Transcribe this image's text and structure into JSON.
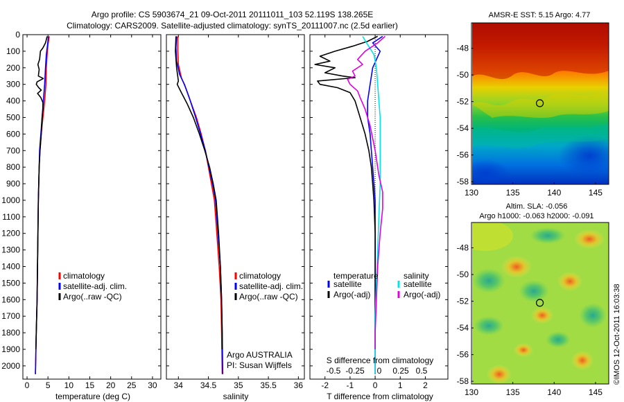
{
  "header": {
    "line1": "Argo profile: CS 5903674_21 09-Oct-2011 20111011_103 52.119S 138.265E",
    "line2": "Climatology: CARS2009. Satellite-adjusted climatology: synTS_20111007.nc (2.5d earlier)"
  },
  "colors": {
    "climatology": "#ff0000",
    "satellite": "#0000ff",
    "argo": "#000000",
    "salinity_satellite": "#00e5e5",
    "salinity_argo": "#e000e0"
  },
  "chart_data": [
    {
      "type": "line",
      "id": "temperature",
      "xlabel": "temperature (deg C)",
      "xlim": [
        -1,
        32
      ],
      "ylim": [
        2080,
        0
      ],
      "xticks": [
        0,
        5,
        10,
        15,
        20,
        25,
        30
      ],
      "yticks": [
        0,
        100,
        200,
        300,
        400,
        500,
        600,
        700,
        800,
        900,
        1000,
        1100,
        1200,
        1300,
        1400,
        1500,
        1600,
        1700,
        1800,
        1900,
        2000
      ],
      "legend": [
        "climatology",
        "satellite-adj. clim.",
        "Argo(..raw -QC)"
      ],
      "series": [
        {
          "name": "climatology",
          "color": "#ff0000",
          "points": [
            [
              5.3,
              10
            ],
            [
              5.0,
              60
            ],
            [
              4.8,
              120
            ],
            [
              4.6,
              200
            ],
            [
              4.5,
              300
            ],
            [
              4.2,
              400
            ],
            [
              3.8,
              500
            ],
            [
              3.4,
              600
            ],
            [
              3.1,
              700
            ],
            [
              2.9,
              800
            ],
            [
              2.8,
              900
            ],
            [
              2.7,
              1000
            ],
            [
              2.6,
              1200
            ],
            [
              2.5,
              1400
            ],
            [
              2.4,
              1600
            ],
            [
              2.2,
              1800
            ],
            [
              2.0,
              2050
            ]
          ]
        },
        {
          "name": "satellite-adj. clim.",
          "color": "#0000ff",
          "points": [
            [
              5.1,
              10
            ],
            [
              4.9,
              60
            ],
            [
              4.6,
              120
            ],
            [
              4.4,
              200
            ],
            [
              4.2,
              300
            ],
            [
              3.9,
              400
            ],
            [
              3.6,
              500
            ],
            [
              3.3,
              600
            ],
            [
              3.0,
              700
            ],
            [
              2.9,
              800
            ],
            [
              2.8,
              900
            ],
            [
              2.7,
              1000
            ],
            [
              2.6,
              1200
            ],
            [
              2.5,
              1400
            ],
            [
              2.4,
              1600
            ],
            [
              2.2,
              1800
            ],
            [
              2.0,
              2050
            ]
          ]
        },
        {
          "name": "Argo(..raw -QC)",
          "color": "#000000",
          "points": [
            [
              4.8,
              10
            ],
            [
              4.4,
              50
            ],
            [
              3.8,
              80
            ],
            [
              3.2,
              100
            ],
            [
              3.0,
              150
            ],
            [
              2.6,
              180
            ],
            [
              2.9,
              210
            ],
            [
              2.7,
              250
            ],
            [
              3.9,
              265
            ],
            [
              2.4,
              285
            ],
            [
              2.2,
              300
            ],
            [
              2.8,
              320
            ],
            [
              3.4,
              335
            ],
            [
              2.5,
              355
            ],
            [
              3.3,
              380
            ],
            [
              3.8,
              410
            ],
            [
              3.8,
              450
            ],
            [
              3.6,
              500
            ],
            [
              3.4,
              600
            ],
            [
              3.1,
              700
            ],
            [
              2.9,
              800
            ],
            [
              2.8,
              900
            ],
            [
              2.7,
              1000
            ],
            [
              2.6,
              1200
            ],
            [
              2.5,
              1400
            ],
            [
              2.4,
              1600
            ],
            [
              2.2,
              1800
            ],
            [
              2.1,
              1900
            ]
          ]
        }
      ]
    },
    {
      "type": "line",
      "id": "salinity",
      "xlabel": "salinity",
      "xlim": [
        33.8,
        36.1
      ],
      "ylim": [
        2080,
        0
      ],
      "xticks": [
        34,
        34.5,
        35,
        35.5,
        36
      ],
      "legend": [
        "climatology",
        "satellite-adj. clim.",
        "Argo(..raw -QC)"
      ],
      "annotations": [
        "Argo AUSTRALIA",
        "PI: Susan Wijffels"
      ],
      "series": [
        {
          "name": "climatology",
          "color": "#ff0000",
          "points": [
            [
              33.99,
              10
            ],
            [
              33.99,
              100
            ],
            [
              34.0,
              180
            ],
            [
              34.05,
              260
            ],
            [
              34.12,
              320
            ],
            [
              34.2,
              400
            ],
            [
              34.3,
              500
            ],
            [
              34.38,
              600
            ],
            [
              34.45,
              700
            ],
            [
              34.5,
              800
            ],
            [
              34.55,
              900
            ],
            [
              34.6,
              1000
            ],
            [
              34.64,
              1200
            ],
            [
              34.68,
              1400
            ],
            [
              34.71,
              1600
            ],
            [
              34.72,
              1800
            ],
            [
              34.73,
              2050
            ]
          ]
        },
        {
          "name": "satellite-adj. clim.",
          "color": "#0000ff",
          "points": [
            [
              33.97,
              10
            ],
            [
              33.96,
              80
            ],
            [
              33.97,
              160
            ],
            [
              34.02,
              240
            ],
            [
              34.1,
              300
            ],
            [
              34.18,
              380
            ],
            [
              34.27,
              480
            ],
            [
              34.37,
              600
            ],
            [
              34.45,
              700
            ],
            [
              34.51,
              800
            ],
            [
              34.57,
              900
            ],
            [
              34.62,
              1000
            ],
            [
              34.66,
              1200
            ],
            [
              34.7,
              1400
            ],
            [
              34.72,
              1600
            ],
            [
              34.73,
              1800
            ],
            [
              34.74,
              2050
            ]
          ]
        },
        {
          "name": "Argo(..raw -QC)",
          "color": "#000000",
          "points": [
            [
              33.96,
              10
            ],
            [
              33.95,
              100
            ],
            [
              33.97,
              200
            ],
            [
              34.0,
              280
            ],
            [
              33.98,
              300
            ],
            [
              34.05,
              350
            ],
            [
              34.15,
              420
            ],
            [
              34.25,
              500
            ],
            [
              34.35,
              600
            ],
            [
              34.44,
              700
            ],
            [
              34.52,
              800
            ],
            [
              34.58,
              900
            ],
            [
              34.63,
              1000
            ],
            [
              34.67,
              1200
            ],
            [
              34.7,
              1400
            ],
            [
              34.72,
              1600
            ],
            [
              34.73,
              1800
            ],
            [
              34.73,
              1900
            ]
          ]
        }
      ]
    },
    {
      "type": "line",
      "id": "difference",
      "xlabel_top": "S difference from climatology",
      "xticks_top": [
        "-0.5",
        "-0.25",
        "0",
        "0.25",
        "0.5"
      ],
      "xlabel": "T difference from climatology",
      "xlim": [
        -2.6,
        2.9
      ],
      "ylim": [
        2080,
        0
      ],
      "xticks": [
        -2,
        -1,
        0,
        1,
        2
      ],
      "legend_temperature_title": "temperature",
      "legend_salinity_title": "salinity",
      "legend_temperature": [
        "satellite",
        "Argo(-adj)"
      ],
      "legend_salinity": [
        "satellite",
        "Argo(-adj)"
      ],
      "series": [
        {
          "name": "temperature satellite",
          "color": "#0000ff",
          "points": [
            [
              0.3,
              10
            ],
            [
              -0.1,
              50
            ],
            [
              0.2,
              100
            ],
            [
              -0.1,
              200
            ],
            [
              -0.2,
              300
            ],
            [
              -0.3,
              400
            ],
            [
              -0.3,
              500
            ],
            [
              -0.2,
              600
            ],
            [
              -0.15,
              700
            ],
            [
              -0.1,
              800
            ],
            [
              -0.05,
              900
            ],
            [
              0,
              1000
            ],
            [
              0,
              1200
            ],
            [
              0,
              1400
            ],
            [
              0,
              1600
            ],
            [
              0,
              1800
            ],
            [
              0,
              2050
            ]
          ]
        },
        {
          "name": "temperature Argo(-adj)",
          "color": "#000000",
          "points": [
            [
              0.1,
              10
            ],
            [
              -0.3,
              40
            ],
            [
              -0.9,
              70
            ],
            [
              -1.6,
              100
            ],
            [
              -2.2,
              130
            ],
            [
              -1.8,
              160
            ],
            [
              -2.4,
              180
            ],
            [
              -1.6,
              200
            ],
            [
              -2.0,
              230
            ],
            [
              -1.3,
              250
            ],
            [
              -0.8,
              260
            ],
            [
              -2.3,
              280
            ],
            [
              -2.2,
              300
            ],
            [
              -1.5,
              320
            ],
            [
              -1.0,
              350
            ],
            [
              -0.8,
              400
            ],
            [
              -0.6,
              500
            ],
            [
              -0.4,
              600
            ],
            [
              -0.25,
              700
            ],
            [
              -0.15,
              800
            ],
            [
              -0.1,
              900
            ],
            [
              -0.05,
              1000
            ],
            [
              0,
              1200
            ],
            [
              0,
              1400
            ],
            [
              0,
              1600
            ],
            [
              0,
              1800
            ],
            [
              0,
              1900
            ]
          ]
        },
        {
          "name": "salinity satellite",
          "color": "#00e5e5",
          "points": [
            [
              -0.5,
              10
            ],
            [
              -0.3,
              60
            ],
            [
              -0.05,
              120
            ],
            [
              0.05,
              200
            ],
            [
              0.1,
              300
            ],
            [
              0.15,
              400
            ],
            [
              0.2,
              500
            ],
            [
              0.2,
              700
            ],
            [
              0.2,
              900
            ],
            [
              0.15,
              1100
            ],
            [
              0.1,
              1300
            ],
            [
              0.05,
              1500
            ],
            [
              0,
              1700
            ],
            [
              0,
              2050
            ]
          ]
        },
        {
          "name": "salinity Argo(-adj)",
          "color": "#e000e0",
          "points": [
            [
              0.4,
              10
            ],
            [
              0.1,
              50
            ],
            [
              -0.4,
              100
            ],
            [
              -0.7,
              150
            ],
            [
              -0.5,
              180
            ],
            [
              -0.9,
              220
            ],
            [
              -0.8,
              250
            ],
            [
              -1.1,
              270
            ],
            [
              -1.0,
              300
            ],
            [
              -0.7,
              340
            ],
            [
              -0.6,
              380
            ],
            [
              -0.4,
              450
            ],
            [
              -0.2,
              550
            ],
            [
              0,
              700
            ],
            [
              0.15,
              850
            ],
            [
              0.3,
              950
            ],
            [
              0.3,
              1050
            ],
            [
              0.2,
              1200
            ],
            [
              0.1,
              1400
            ],
            [
              0.05,
              1600
            ],
            [
              0,
              1800
            ],
            [
              0,
              1900
            ]
          ]
        }
      ]
    },
    {
      "type": "heatmap",
      "id": "sst_map",
      "title": "AMSR-E SST: 5.15 Argo: 4.77",
      "xlim": [
        130,
        146.6
      ],
      "ylim": [
        -58.2,
        -46.1
      ],
      "xticks": [
        130,
        135,
        140,
        145
      ],
      "yticks": [
        -48,
        -50,
        -52,
        -54,
        -56,
        -58
      ],
      "marker": {
        "lon": 138.265,
        "lat": -52.119
      }
    },
    {
      "type": "heatmap",
      "id": "sla_map",
      "title": "Altim. SLA: -0.056",
      "subtitle": "Argo h1000: -0.063 h2000: -0.091",
      "xlim": [
        130,
        146.6
      ],
      "ylim": [
        -58.2,
        -46.1
      ],
      "xticks": [
        130,
        135,
        140,
        145
      ],
      "yticks": [
        -48,
        -50,
        -52,
        -54,
        -56,
        -58
      ],
      "marker": {
        "lon": 138.265,
        "lat": -52.119
      }
    }
  ],
  "side_label": "©IMOS 12-Oct-2011 16:03:38"
}
